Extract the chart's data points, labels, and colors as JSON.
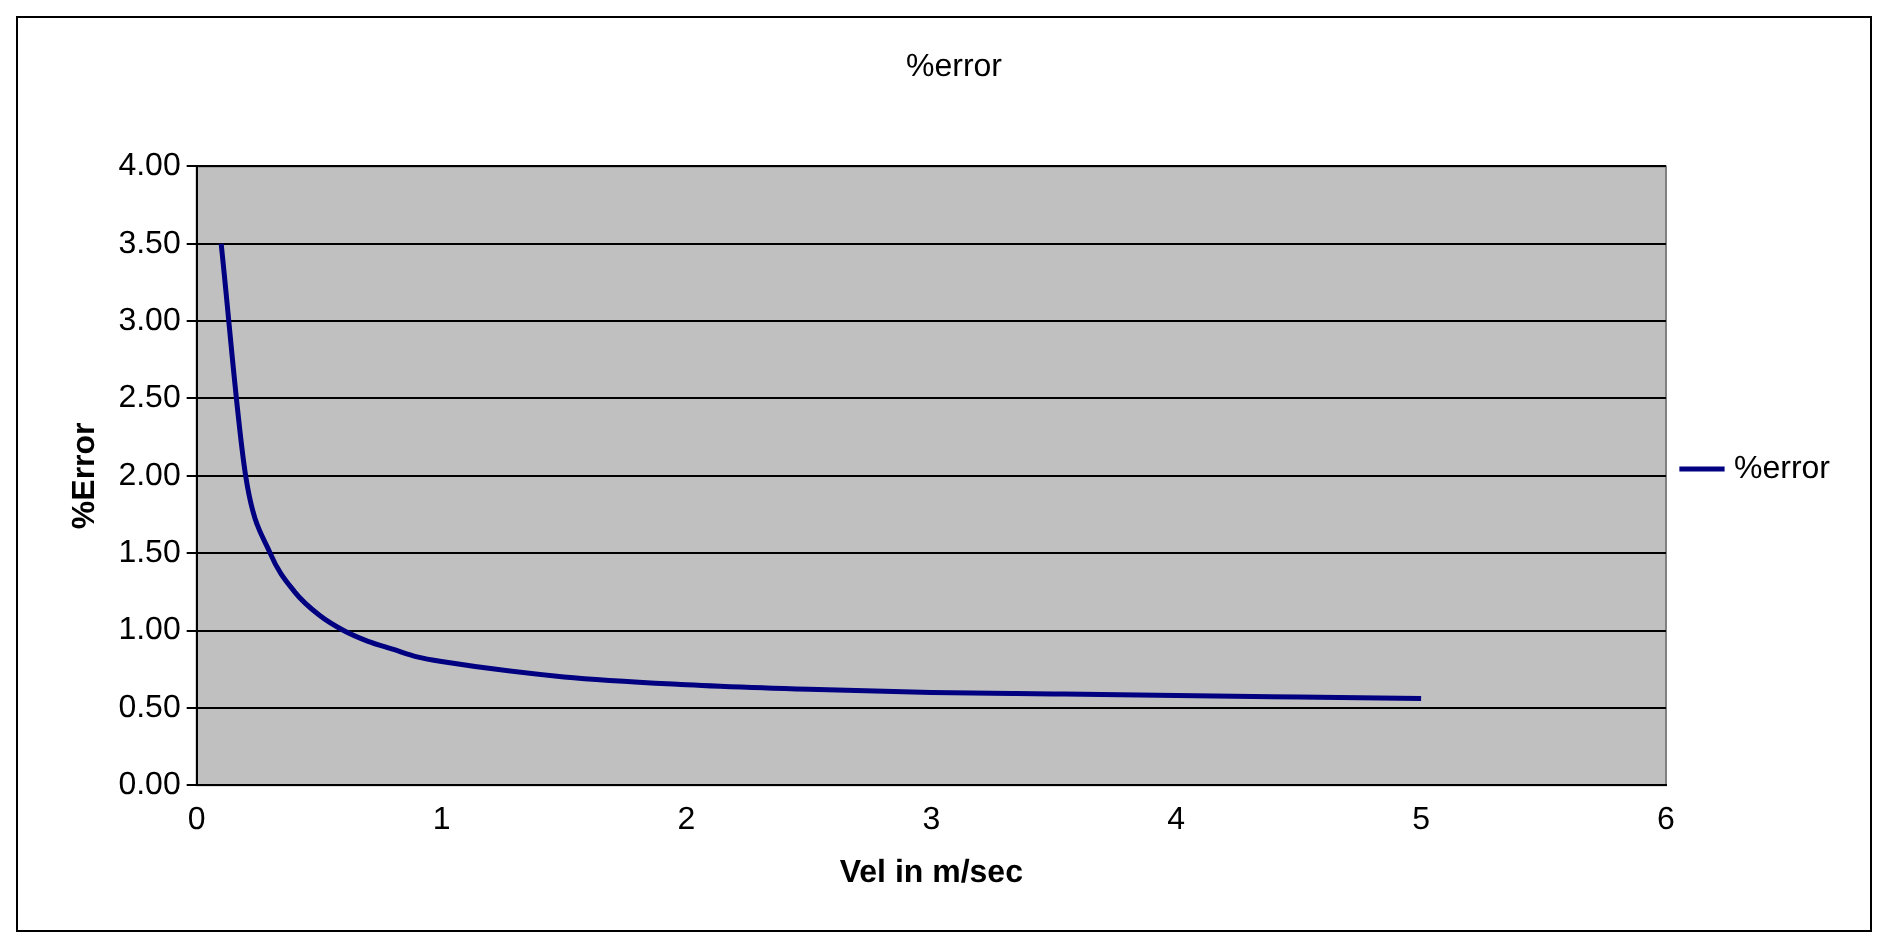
{
  "chart_data": {
    "type": "line",
    "title": "%error",
    "xlabel": "Vel in m/sec",
    "ylabel": "%Error",
    "x": [
      0.1,
      0.2,
      0.3,
      0.4,
      0.5,
      0.6,
      0.7,
      0.8,
      0.9,
      1,
      1.5,
      2,
      2.5,
      3,
      3.5,
      4,
      5
    ],
    "series": [
      {
        "name": "%error",
        "color": "#000080",
        "values": [
          3.5,
          2.0,
          1.5,
          1.25,
          1.1,
          1.0,
          0.93,
          0.88,
          0.83,
          0.8,
          0.7,
          0.65,
          0.62,
          0.6,
          0.59,
          0.58,
          0.56
        ]
      }
    ],
    "xlim": [
      0,
      6
    ],
    "xticks": [
      0,
      1,
      2,
      3,
      4,
      5,
      6
    ],
    "ylim": [
      0,
      4
    ],
    "yticks": [
      {
        "value": 0,
        "label": "0.00"
      },
      {
        "value": 0.5,
        "label": "0.50"
      },
      {
        "value": 1,
        "label": "1.00"
      },
      {
        "value": 1.5,
        "label": "1.50"
      },
      {
        "value": 2,
        "label": "2.00"
      },
      {
        "value": 2.5,
        "label": "2.50"
      },
      {
        "value": 3,
        "label": "3.00"
      },
      {
        "value": 3.5,
        "label": "3.50"
      },
      {
        "value": 4,
        "label": "4.00"
      }
    ],
    "grid": "y",
    "legend": "right",
    "marker": "none",
    "line_style": "solid"
  }
}
